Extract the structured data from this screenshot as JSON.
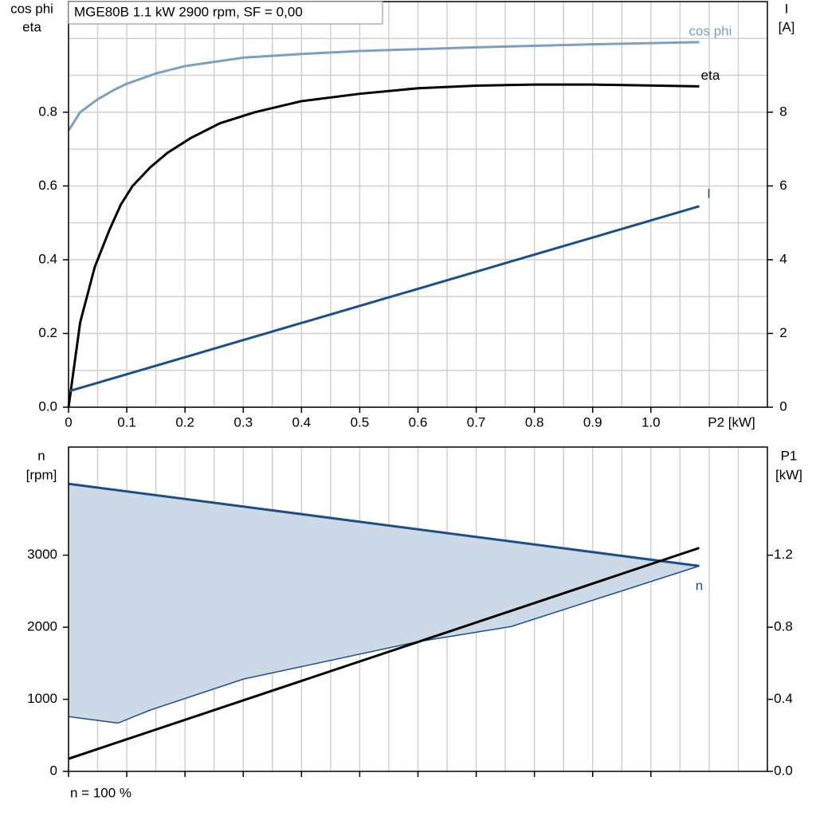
{
  "title": "MGE80B   1.1 kW   2900 rpm, SF = 0,00",
  "annotation": "n = 100 %",
  "chart_data": [
    {
      "type": "line",
      "ylabel": [
        "cos phi",
        "eta"
      ],
      "y2label": [
        "I",
        "[A]"
      ],
      "xlabel": "P2 [kW]",
      "xlim": [
        0,
        1.2
      ],
      "xticks": [
        0,
        0.1,
        0.2,
        0.3,
        0.4,
        0.5,
        0.6,
        0.7,
        0.8,
        0.9,
        {
          "value": 1,
          "label": "1.0"
        }
      ],
      "xminor": [
        0.05,
        0.15,
        0.25,
        0.35,
        0.45,
        0.55,
        0.65,
        0.75,
        0.85,
        0.95,
        1.05,
        1.1,
        1.15
      ],
      "ylim": [
        0,
        1.1
      ],
      "yticks": [
        {
          "value": 0,
          "label": "0.0"
        },
        0.2,
        0.4,
        0.6,
        0.8
      ],
      "yminor": [
        0.1,
        0.3,
        0.5,
        0.7,
        0.9,
        1.0
      ],
      "y2lim": [
        0,
        11
      ],
      "y2ticks": [
        0,
        2,
        4,
        6,
        8
      ],
      "grid": "both",
      "show_xtick_labels": true,
      "series": [
        {
          "name": "cos phi",
          "color": "#7f9fbf",
          "x": [
            0,
            0.02,
            0.05,
            0.08,
            0.1,
            0.15,
            0.2,
            0.3,
            0.4,
            0.5,
            0.7,
            0.9,
            1.083
          ],
          "values": [
            0.75,
            0.8,
            0.835,
            0.862,
            0.877,
            0.905,
            0.925,
            0.948,
            0.958,
            0.966,
            0.976,
            0.984,
            0.99
          ]
        },
        {
          "name": "eta",
          "color": "#000000",
          "x": [
            0,
            0.02,
            0.045,
            0.07,
            0.09,
            0.11,
            0.14,
            0.17,
            0.21,
            0.26,
            0.32,
            0.4,
            0.5,
            0.6,
            0.7,
            0.8,
            0.9,
            1.083
          ],
          "values": [
            0,
            0.23,
            0.38,
            0.48,
            0.55,
            0.6,
            0.65,
            0.69,
            0.73,
            0.77,
            0.8,
            0.83,
            0.85,
            0.865,
            0.872,
            0.875,
            0.875,
            0.87
          ]
        },
        {
          "name": "I",
          "color": "#1f4e85",
          "axis": "y2",
          "x": [
            0,
            1.083
          ],
          "values": [
            0.43,
            5.45
          ]
        }
      ]
    },
    {
      "type": "area",
      "ylabel": [
        "n",
        "[rpm]"
      ],
      "y2label": [
        "P1",
        "[kW]"
      ],
      "xlim": [
        0,
        1.2
      ],
      "xticks": [
        0,
        0.1,
        0.2,
        0.3,
        0.4,
        0.5,
        0.6,
        0.7,
        0.8,
        0.9,
        1
      ],
      "xminor": [
        0.05,
        0.15,
        0.25,
        0.35,
        0.45,
        0.55,
        0.65,
        0.75,
        0.85,
        0.95,
        1.05,
        1.1,
        1.15
      ],
      "ylim": [
        0,
        4500
      ],
      "yticks": [
        0,
        1000,
        2000,
        3000
      ],
      "y2lim": [
        0,
        1.8
      ],
      "y2ticks": [
        {
          "value": 0,
          "label": "0.0"
        },
        0.4,
        0.8,
        1.2
      ],
      "grid": "x",
      "show_xtick_labels": false,
      "area_color": "#cdd9e6",
      "series": [
        {
          "name": "n",
          "color": "#1f4e85",
          "x": [
            0,
            1.083
          ],
          "values": [
            3990,
            2850
          ]
        },
        {
          "color": "#1f4e85",
          "x": [
            0,
            0.085,
            0.14,
            0.3,
            0.6,
            0.76,
            1.083
          ],
          "values": [
            760,
            670,
            850,
            1280,
            1800,
            2010,
            2850
          ]
        },
        {
          "color": "#000000",
          "axis": "y2",
          "x": [
            0,
            1.083
          ],
          "values": [
            0.07,
            1.24
          ]
        }
      ]
    }
  ]
}
